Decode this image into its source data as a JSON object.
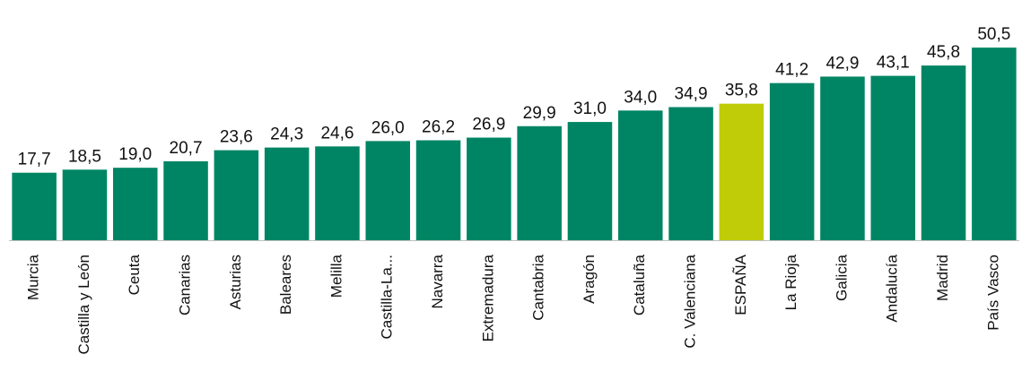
{
  "chart_data": {
    "type": "bar",
    "title": "",
    "xlabel": "",
    "ylabel": "",
    "ylim": [
      0,
      55
    ],
    "grid": false,
    "legend": "none",
    "bar_color": "#008564",
    "highlight_color": "#BFCC07",
    "highlight_category": "ESPAÑA",
    "categories": [
      "Murcia",
      "Castilla y León",
      "Ceuta",
      "Canarias",
      "Asturias",
      "Baleares",
      "Melilla",
      "Castilla-La...",
      "Navarra",
      "Extremadura",
      "Cantabria",
      "Aragón",
      "Cataluña",
      "C. Valenciana",
      "ESPAÑA",
      "La Rioja",
      "Galicia",
      "Andalucía",
      "Madrid",
      "País Vasco"
    ],
    "values": [
      17.7,
      18.5,
      19.0,
      20.7,
      23.6,
      24.3,
      24.6,
      26.0,
      26.2,
      26.9,
      29.9,
      31.0,
      34.0,
      34.9,
      35.8,
      41.2,
      42.9,
      43.1,
      45.8,
      50.5
    ],
    "value_labels": [
      "17,7",
      "18,5",
      "19,0",
      "20,7",
      "23,6",
      "24,3",
      "24,6",
      "26,0",
      "26,2",
      "26,9",
      "29,9",
      "31,0",
      "34,0",
      "34,9",
      "35,8",
      "41,2",
      "42,9",
      "43,1",
      "45,8",
      "50,5"
    ]
  }
}
